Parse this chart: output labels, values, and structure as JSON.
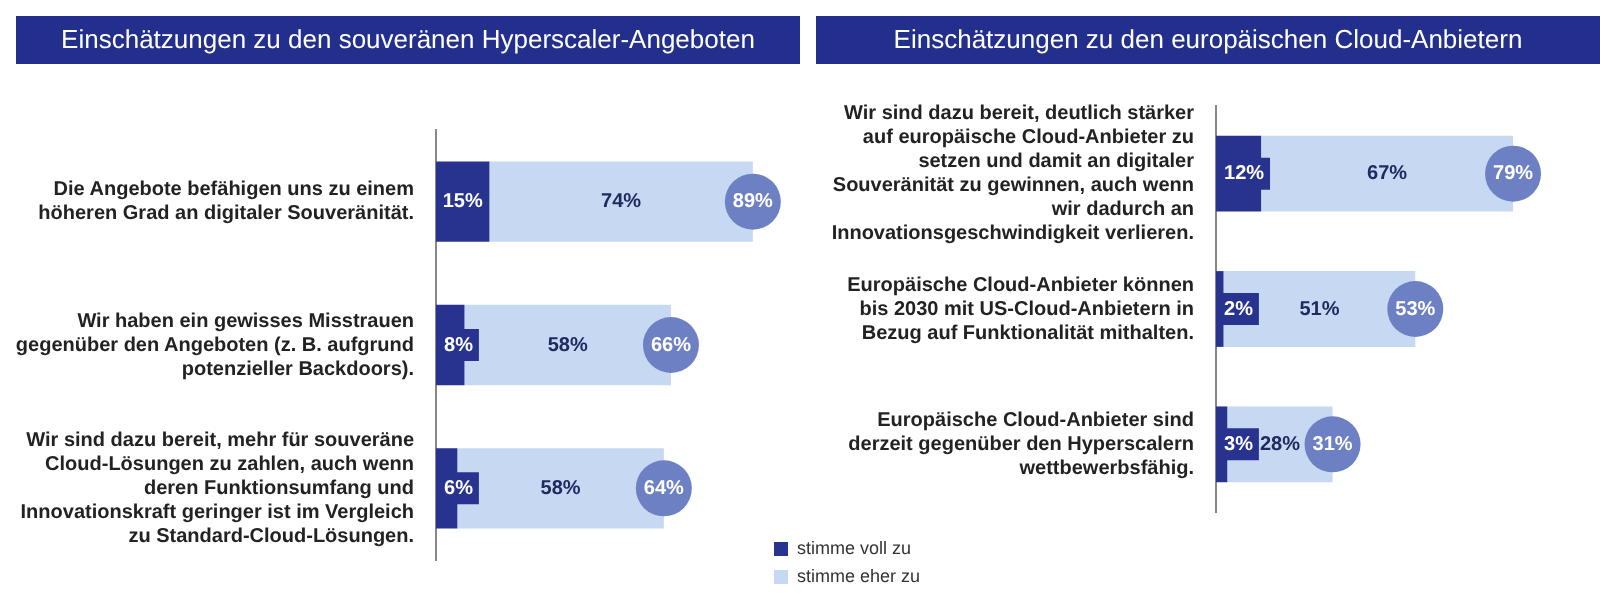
{
  "chart_data": [
    {
      "type": "bar",
      "orientation": "horizontal",
      "stacked": true,
      "title": "Einschätzungen zu den souveränen Hyperscaler-Angeboten",
      "categories": [
        "Die Angebote befähigen uns zu einem höheren Grad an digitaler Souveränität.",
        "Wir haben ein gewisses Misstrauen gegenüber den Angeboten (z. B. aufgrund potenzieller Backdoors).",
        "Wir sind dazu bereit, mehr für souveräne Cloud-Lösungen zu zahlen, auch wenn deren Funktionsumfang und Innovationskraft geringer ist im Vergleich zu Standard-Cloud-Lösungen."
      ],
      "series": [
        {
          "name": "stimme voll zu",
          "color": "#27338f",
          "values": [
            15,
            8,
            6
          ],
          "value_labels": [
            "15%",
            "8%",
            "6%"
          ]
        },
        {
          "name": "stimme eher zu",
          "color": "#c6d8f2",
          "values": [
            74,
            58,
            58
          ],
          "value_labels": [
            "74%",
            "58%",
            "58%"
          ]
        }
      ],
      "totals": [
        "89%",
        "66%",
        "64%"
      ],
      "xlim": [
        0,
        100
      ],
      "tick_labels": "y",
      "legend": "bottom right"
    },
    {
      "type": "bar",
      "orientation": "horizontal",
      "stacked": true,
      "title": "Einschätzungen zu den europäischen Cloud-Anbietern",
      "categories": [
        "Wir sind dazu bereit, deutlich stärker auf europäische Cloud-Anbieter zu setzen und damit an digitaler Souveränität zu gewinnen, auch wenn wir dadurch an Innovationsgeschwindigkeit verlieren.",
        "Europäische Cloud-Anbieter können bis 2030 mit US-Cloud-Anbietern in Bezug auf Funktionalität mithalten.",
        "Europäische Cloud-Anbieter sind derzeit gegenüber den Hyperscalern wettbewerbsfähig."
      ],
      "series": [
        {
          "color": "#27338f",
          "values": [
            12,
            2,
            3
          ],
          "value_labels": [
            "12%",
            "2%",
            "3%"
          ]
        },
        {
          "color": "#c6d8f2",
          "values": [
            67,
            51,
            28
          ],
          "value_labels": [
            "67%",
            "51%",
            "28%"
          ]
        }
      ],
      "totals": [
        "79%",
        "53%",
        "31%"
      ],
      "tick_labels": "y"
    }
  ]
}
